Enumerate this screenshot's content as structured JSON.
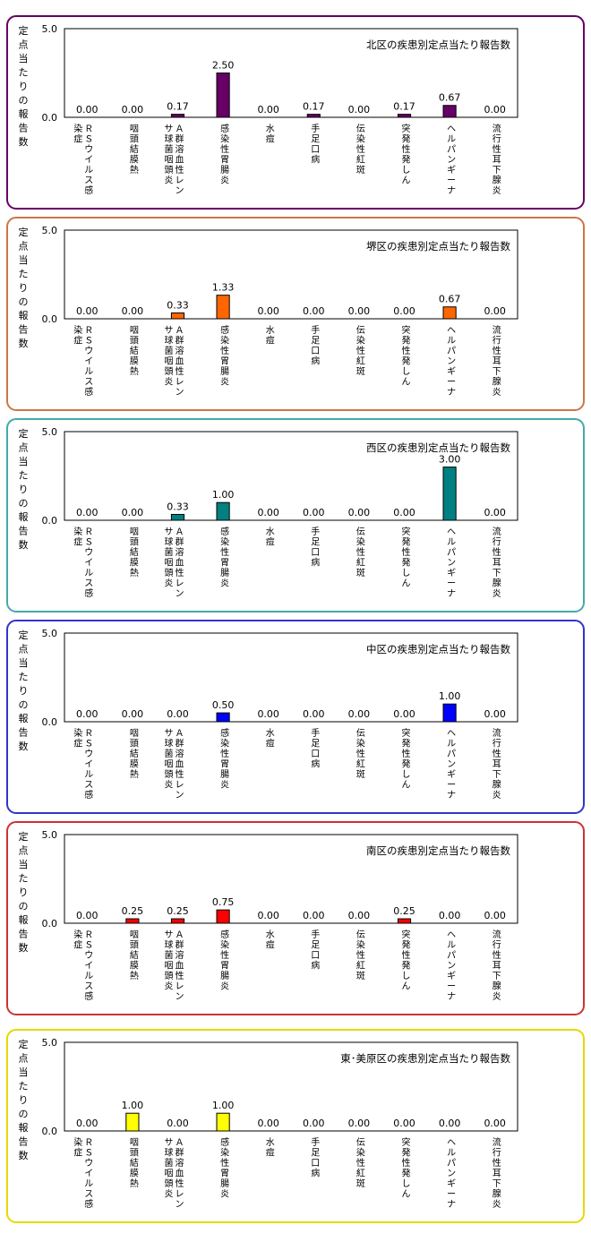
{
  "chart_data": [
    {
      "type": "bar",
      "title": "北区の疾患別定点当たり報告数",
      "ylabel": "定点当たりの報告数",
      "ylim": [
        0,
        5
      ],
      "yticks": [
        "0.0",
        "5.0"
      ],
      "categories": [
        "ＲＳウイルス感染症",
        "咽頭結膜熱",
        "Ａ群溶血性レンサ球菌咽頭炎",
        "感染性胃腸炎",
        "水痘",
        "手足口病",
        "伝染性紅斑",
        "突発性発しん",
        "ヘルパンギーナ",
        "流行性耳下腺炎"
      ],
      "values": [
        0.0,
        0.0,
        0.17,
        2.5,
        0.0,
        0.17,
        0.0,
        0.17,
        0.67,
        0.0
      ],
      "value_labels": [
        "0.00",
        "0.00",
        "0.17",
        "2.50",
        "0.00",
        "0.17",
        "0.00",
        "0.17",
        "0.67",
        "0.00"
      ],
      "bar_color": "#660066",
      "border_color": "#660066",
      "grid": false,
      "legend": "none"
    },
    {
      "type": "bar",
      "title": "堺区の疾患別定点当たり報告数",
      "ylabel": "定点当たりの報告数",
      "ylim": [
        0,
        5
      ],
      "yticks": [
        "0.0",
        "5.0"
      ],
      "categories": [
        "ＲＳウイルス感染症",
        "咽頭結膜熱",
        "Ａ群溶血性レンサ球菌咽頭炎",
        "感染性胃腸炎",
        "水痘",
        "手足口病",
        "伝染性紅斑",
        "突発性発しん",
        "ヘルパンギーナ",
        "流行性耳下腺炎"
      ],
      "values": [
        0.0,
        0.0,
        0.33,
        1.33,
        0.0,
        0.0,
        0.0,
        0.0,
        0.67,
        0.0
      ],
      "value_labels": [
        "0.00",
        "0.00",
        "0.33",
        "1.33",
        "0.00",
        "0.00",
        "0.00",
        "0.00",
        "0.67",
        "0.00"
      ],
      "bar_color": "#FF6600",
      "border_color": "#CC7744",
      "grid": false,
      "legend": "none"
    },
    {
      "type": "bar",
      "title": "西区の疾患別定点当たり報告数",
      "ylabel": "定点当たりの報告数",
      "ylim": [
        0,
        5
      ],
      "yticks": [
        "0.0",
        "5.0"
      ],
      "categories": [
        "ＲＳウイルス感染症",
        "咽頭結膜熱",
        "Ａ群溶血性レンサ球菌咽頭炎",
        "感染性胃腸炎",
        "水痘",
        "手足口病",
        "伝染性紅斑",
        "突発性発しん",
        "ヘルパンギーナ",
        "流行性耳下腺炎"
      ],
      "values": [
        0.0,
        0.0,
        0.33,
        1.0,
        0.0,
        0.0,
        0.0,
        0.0,
        3.0,
        0.0
      ],
      "value_labels": [
        "0.00",
        "0.00",
        "0.33",
        "1.00",
        "0.00",
        "0.00",
        "0.00",
        "0.00",
        "3.00",
        "0.00"
      ],
      "bar_color": "#008080",
      "border_color": "#44AAAA",
      "grid": false,
      "legend": "none"
    },
    {
      "type": "bar",
      "title": "中区の疾患別定点当たり報告数",
      "ylabel": "定点当たりの報告数",
      "ylim": [
        0,
        5
      ],
      "yticks": [
        "0.0",
        "5.0"
      ],
      "categories": [
        "ＲＳウイルス感染症",
        "咽頭結膜熱",
        "Ａ群溶血性レンサ球菌咽頭炎",
        "感染性胃腸炎",
        "水痘",
        "手足口病",
        "伝染性紅斑",
        "突発性発しん",
        "ヘルパンギーナ",
        "流行性耳下腺炎"
      ],
      "values": [
        0.0,
        0.0,
        0.0,
        0.5,
        0.0,
        0.0,
        0.0,
        0.0,
        1.0,
        0.0
      ],
      "value_labels": [
        "0.00",
        "0.00",
        "0.00",
        "0.50",
        "0.00",
        "0.00",
        "0.00",
        "0.00",
        "1.00",
        "0.00"
      ],
      "bar_color": "#0000FF",
      "border_color": "#3333CC",
      "grid": false,
      "legend": "none"
    },
    {
      "type": "bar",
      "title": "南区の疾患別定点当たり報告数",
      "ylabel": "定点当たりの報告数",
      "ylim": [
        0,
        5
      ],
      "yticks": [
        "0.0",
        "5.0"
      ],
      "categories": [
        "ＲＳウイルス感染症",
        "咽頭結膜熱",
        "Ａ群溶血性レンサ球菌咽頭炎",
        "感染性胃腸炎",
        "水痘",
        "手足口病",
        "伝染性紅斑",
        "突発性発しん",
        "ヘルパンギーナ",
        "流行性耳下腺炎"
      ],
      "values": [
        0.0,
        0.25,
        0.25,
        0.75,
        0.0,
        0.0,
        0.0,
        0.25,
        0.0,
        0.0
      ],
      "value_labels": [
        "0.00",
        "0.25",
        "0.25",
        "0.75",
        "0.00",
        "0.00",
        "0.00",
        "0.25",
        "0.00",
        "0.00"
      ],
      "bar_color": "#FF0000",
      "border_color": "#CC3333",
      "grid": false,
      "legend": "none"
    },
    {
      "type": "bar",
      "title": "東･美原区の疾患別定点当たり報告数",
      "ylabel": "定点当たりの報告数",
      "ylim": [
        0,
        5
      ],
      "yticks": [
        "0.0",
        "5.0"
      ],
      "categories": [
        "ＲＳウイルス感染症",
        "咽頭結膜熱",
        "Ａ群溶血性レンサ球菌咽頭炎",
        "感染性胃腸炎",
        "水痘",
        "手足口病",
        "伝染性紅斑",
        "突発性発しん",
        "ヘルパンギーナ",
        "流行性耳下腺炎"
      ],
      "values": [
        0.0,
        1.0,
        0.0,
        1.0,
        0.0,
        0.0,
        0.0,
        0.0,
        0.0,
        0.0
      ],
      "value_labels": [
        "0.00",
        "1.00",
        "0.00",
        "1.00",
        "0.00",
        "0.00",
        "0.00",
        "0.00",
        "0.00",
        "0.00"
      ],
      "bar_color": "#FFFF00",
      "border_color": "#E6D800",
      "grid": false,
      "legend": "none"
    }
  ]
}
